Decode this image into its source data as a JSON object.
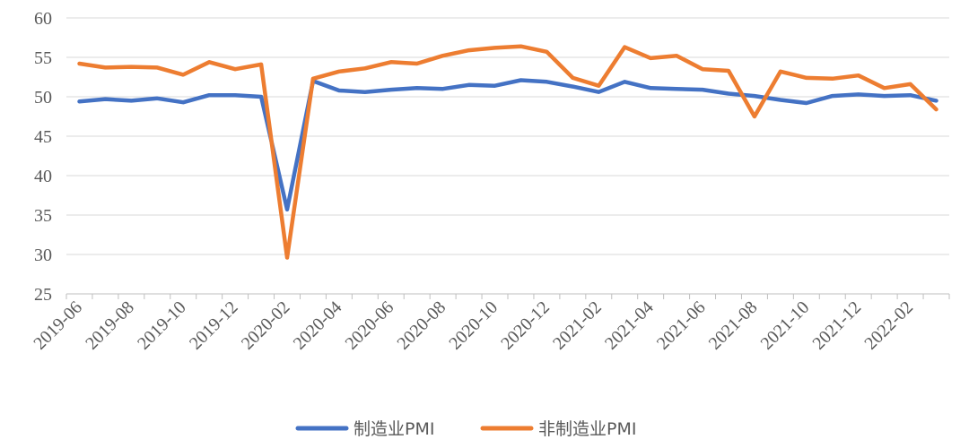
{
  "chart_data": {
    "type": "line",
    "title": "",
    "xlabel": "",
    "ylabel": "",
    "ylim": [
      25,
      60
    ],
    "yticks": [
      25,
      30,
      35,
      40,
      45,
      50,
      55,
      60
    ],
    "grid": "horizontal",
    "legend": "bottom",
    "x": [
      "2019-06",
      "2019-07",
      "2019-08",
      "2019-09",
      "2019-10",
      "2019-11",
      "2019-12",
      "2020-01",
      "2020-02",
      "2020-03",
      "2020-04",
      "2020-05",
      "2020-06",
      "2020-07",
      "2020-08",
      "2020-09",
      "2020-10",
      "2020-11",
      "2020-12",
      "2021-01",
      "2021-02",
      "2021-03",
      "2021-04",
      "2021-05",
      "2021-06",
      "2021-07",
      "2021-08",
      "2021-09",
      "2021-10",
      "2021-11",
      "2021-12",
      "2022-01",
      "2022-02",
      "2022-03"
    ],
    "xtick_labels": [
      "2019-06",
      "2019-08",
      "2019-10",
      "2019-12",
      "2020-02",
      "2020-04",
      "2020-06",
      "2020-08",
      "2020-10",
      "2020-12",
      "2021-02",
      "2021-04",
      "2021-06",
      "2021-08",
      "2021-10",
      "2021-12",
      "2022-02"
    ],
    "series": [
      {
        "name": "制造业PMI",
        "color": "#4472C4",
        "values": [
          49.4,
          49.7,
          49.5,
          49.8,
          49.3,
          50.2,
          50.2,
          50.0,
          35.7,
          52.0,
          50.8,
          50.6,
          50.9,
          51.1,
          51.0,
          51.5,
          51.4,
          52.1,
          51.9,
          51.3,
          50.6,
          51.9,
          51.1,
          51.0,
          50.9,
          50.4,
          50.1,
          49.6,
          49.2,
          50.1,
          50.3,
          50.1,
          50.2,
          49.5
        ]
      },
      {
        "name": "非制造业PMI",
        "color": "#ED7D31",
        "values": [
          54.2,
          53.7,
          53.8,
          53.7,
          52.8,
          54.4,
          53.5,
          54.1,
          29.6,
          52.3,
          53.2,
          53.6,
          54.4,
          54.2,
          55.2,
          55.9,
          56.2,
          56.4,
          55.7,
          52.4,
          51.4,
          56.3,
          54.9,
          55.2,
          53.5,
          53.3,
          47.5,
          53.2,
          52.4,
          52.3,
          52.7,
          51.1,
          51.6,
          48.4
        ]
      }
    ]
  }
}
